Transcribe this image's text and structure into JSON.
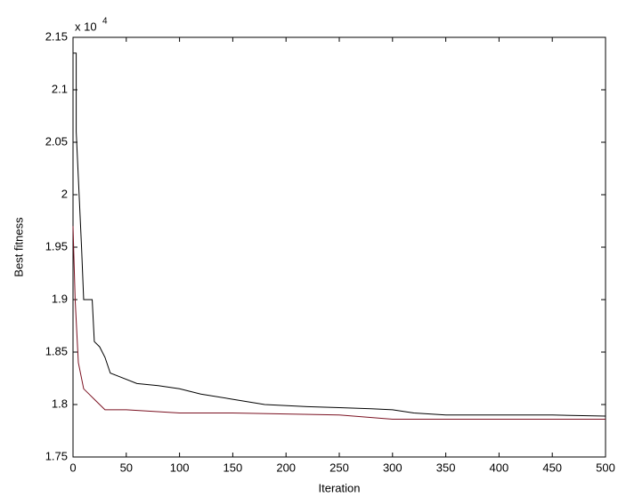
{
  "chart_data": {
    "type": "line",
    "x_label": "Iteration",
    "y_label": "Best fitness",
    "y_multiplier": "x 10",
    "y_multiplier_exponent": "4",
    "xlim": [
      0,
      500
    ],
    "xticks": [
      0,
      50,
      100,
      150,
      200,
      250,
      300,
      350,
      400,
      450,
      500
    ],
    "ylim": [
      1.75,
      2.15
    ],
    "yticks": [
      1.75,
      1.8,
      1.85,
      1.9,
      1.95,
      2,
      2.05,
      2.1,
      2.15
    ],
    "grid": false,
    "series": [
      {
        "color": "#000000",
        "x": [
          0,
          3,
          3,
          8,
          10,
          12,
          18,
          20,
          25,
          30,
          35,
          40,
          60,
          80,
          100,
          120,
          150,
          180,
          220,
          250,
          280,
          300,
          320,
          350,
          450,
          500
        ],
        "values": [
          2.135,
          2.135,
          2.06,
          1.95,
          1.9,
          1.9,
          1.9,
          1.86,
          1.855,
          1.845,
          1.83,
          1.828,
          1.82,
          1.818,
          1.815,
          1.81,
          1.805,
          1.8,
          1.798,
          1.797,
          1.796,
          1.795,
          1.792,
          1.79,
          1.79,
          1.789
        ]
      },
      {
        "color": "#7a1020",
        "x": [
          0,
          2,
          5,
          10,
          15,
          20,
          30,
          50,
          100,
          150,
          250,
          300,
          400,
          500
        ],
        "values": [
          1.97,
          1.9,
          1.84,
          1.815,
          1.81,
          1.805,
          1.795,
          1.795,
          1.792,
          1.792,
          1.79,
          1.786,
          1.786,
          1.786
        ]
      }
    ]
  }
}
